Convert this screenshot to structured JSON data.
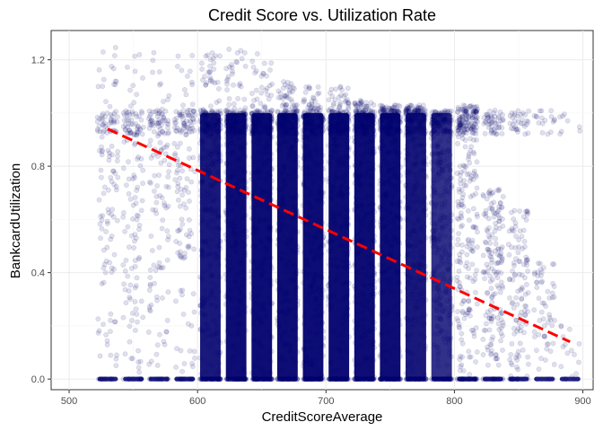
{
  "chart_data": {
    "type": "scatter",
    "title": "Credit Score vs. Utilization Rate",
    "xlabel": "CreditScoreAverage",
    "ylabel": "BankcardUtilization",
    "xlim": [
      486,
      908
    ],
    "ylim": [
      -0.04,
      1.31
    ],
    "x_ticks": [
      500,
      600,
      700,
      800,
      900
    ],
    "y_ticks": [
      0.0,
      0.4,
      0.8,
      1.2
    ],
    "x_tick_labels": [
      "500",
      "600",
      "700",
      "800",
      "900"
    ],
    "y_tick_labels": [
      "0.0",
      "0.4",
      "0.8",
      "1.2"
    ],
    "grid": true,
    "legend": "none",
    "point_color": "#00006e",
    "point_alpha": 0.12,
    "line_color": "#ff0000",
    "trend_line": {
      "style": "dashed",
      "x": [
        530,
        890
      ],
      "y": [
        0.94,
        0.14
      ]
    },
    "score_columns": [
      {
        "x": 530,
        "density": 0.28,
        "max_y": 1.25
      },
      {
        "x": 550,
        "density": 0.3,
        "max_y": 1.24
      },
      {
        "x": 570,
        "density": 0.3,
        "max_y": 1.24
      },
      {
        "x": 590,
        "density": 0.32,
        "max_y": 1.24
      },
      {
        "x": 610,
        "density": 0.95,
        "max_y": 1.24
      },
      {
        "x": 630,
        "density": 1.0,
        "max_y": 1.24
      },
      {
        "x": 650,
        "density": 1.0,
        "max_y": 1.23
      },
      {
        "x": 670,
        "density": 1.0,
        "max_y": 1.12
      },
      {
        "x": 690,
        "density": 1.0,
        "max_y": 1.11
      },
      {
        "x": 710,
        "density": 1.0,
        "max_y": 1.1
      },
      {
        "x": 730,
        "density": 1.0,
        "max_y": 1.05
      },
      {
        "x": 750,
        "density": 1.0,
        "max_y": 1.03
      },
      {
        "x": 770,
        "density": 0.95,
        "max_y": 1.03
      },
      {
        "x": 790,
        "density": 0.85,
        "max_y": 1.0
      },
      {
        "x": 810,
        "density": 0.65,
        "max_y": 1.03
      },
      {
        "x": 830,
        "density": 0.45,
        "max_y": 0.72
      },
      {
        "x": 850,
        "density": 0.3,
        "max_y": 0.64
      },
      {
        "x": 870,
        "density": 0.15,
        "max_y": 0.44
      },
      {
        "x": 890,
        "density": 0.05,
        "max_y": 0.2
      }
    ]
  }
}
